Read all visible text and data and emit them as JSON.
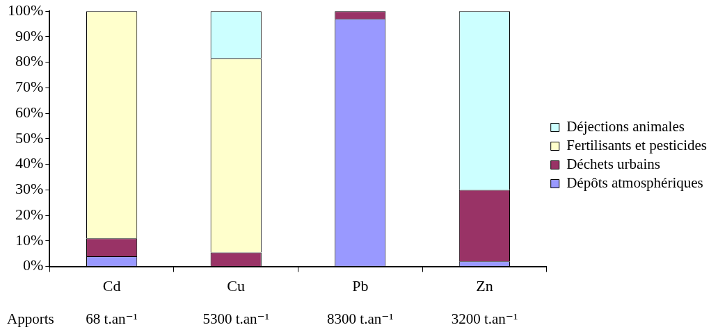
{
  "chart_data": {
    "type": "bar",
    "stacked": true,
    "categories": [
      "Cd",
      "Cu",
      "Pb",
      "Zn"
    ],
    "series": [
      {
        "name": "Dépôts atmosphériques",
        "color": "#9999ff",
        "values": [
          4,
          0,
          97,
          2
        ]
      },
      {
        "name": "Déchets urbains",
        "color": "#993366",
        "values": [
          7,
          5.5,
          3,
          28
        ]
      },
      {
        "name": "Fertilisants et pesticides",
        "color": "#ffffcc",
        "values": [
          89,
          76,
          0,
          0
        ]
      },
      {
        "name": "Déjections animales",
        "color": "#ccffff",
        "values": [
          0,
          18.5,
          0,
          70
        ]
      }
    ],
    "ylim": [
      0,
      100
    ],
    "yticks": [
      {
        "value": 0,
        "label": "0%"
      },
      {
        "value": 10,
        "label": "10%"
      },
      {
        "value": 20,
        "label": "20%"
      },
      {
        "value": 30,
        "label": "30%"
      },
      {
        "value": 40,
        "label": "40%"
      },
      {
        "value": 50,
        "label": "50%"
      },
      {
        "value": 60,
        "label": "60%"
      },
      {
        "value": 70,
        "label": "70%"
      },
      {
        "value": 80,
        "label": "80%"
      },
      {
        "value": 90,
        "label": "90%"
      },
      {
        "value": 100,
        "label": "100%"
      }
    ],
    "grid": false,
    "legend": "right",
    "annotations": [
      "Apports",
      "68 t.an⁻¹",
      "5300 t.an⁻¹",
      "8300 t.an⁻¹",
      "3200 t.an⁻¹"
    ]
  }
}
